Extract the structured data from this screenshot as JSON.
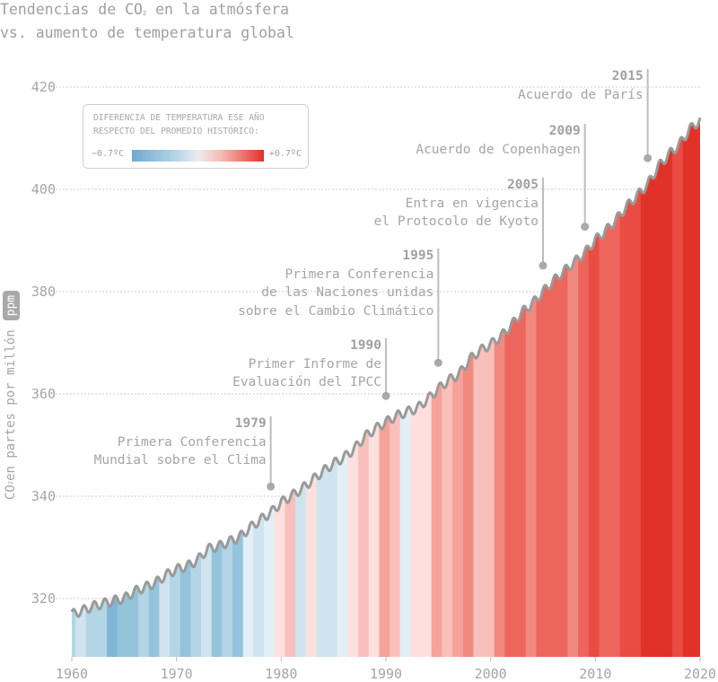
{
  "title": {
    "line1_pre": "Tendencias de CO",
    "line1_sub": "2",
    "line1_post": " en la atmósfera",
    "line2": "vs. aumento de temperatura global"
  },
  "legend": {
    "line1": "DIFERENCIA DE TEMPERATURA ESE AÑO",
    "line2": "RESPECTO DEL PROMEDIO HISTÓRICO:",
    "min_label": "−0.7ºC",
    "max_label": "+0.7ºC"
  },
  "ylabel": {
    "pre": "CO",
    "sub": "2",
    "post": " en partes por millón",
    "unit": "ppm"
  },
  "colors": {
    "curve": "#9a9a9a",
    "cold": "#6fa9cf",
    "neutral": "#ecebef",
    "warm": "#e2302a",
    "grid": "#cccccc",
    "text": "#a0a0a0"
  },
  "annotations": [
    {
      "year": "1979",
      "lines": [
        "Primera Conferencia",
        "Mundial sobre el Clima"
      ]
    },
    {
      "year": "1990",
      "lines": [
        "Primer Informe de",
        "Evaluación del IPCC"
      ]
    },
    {
      "year": "1995",
      "lines": [
        "Primera Conferencia",
        "de las Naciones unidas",
        "sobre el Cambio Climático"
      ]
    },
    {
      "year": "2005",
      "lines": [
        "Entra en vigencia",
        "el Protocolo de Kyoto"
      ]
    },
    {
      "year": "2009",
      "lines": [
        "Acuerdo de Copenhagen"
      ]
    },
    {
      "year": "2015",
      "lines": [
        "Acuerdo de París"
      ]
    }
  ],
  "chart_data": {
    "type": "area",
    "title": "Tendencias de CO2 en la atmósfera vs. aumento de temperatura global",
    "xlabel": "",
    "ylabel": "CO2 en partes por millón (ppm)",
    "xlim": [
      1960,
      2020
    ],
    "ylim": [
      308,
      425
    ],
    "x_ticks": [
      "1960",
      "1970",
      "1980",
      "1990",
      "2000",
      "2010",
      "2020"
    ],
    "y_ticks": [
      "320",
      "340",
      "360",
      "380",
      "400",
      "420"
    ],
    "grid": "horizontal dotted",
    "legend_placement": "top-left",
    "color_scale": {
      "min": -0.7,
      "max": 0.7,
      "unit": "ºC"
    },
    "years": [
      1960,
      1961,
      1962,
      1963,
      1964,
      1965,
      1966,
      1967,
      1968,
      1969,
      1970,
      1971,
      1972,
      1973,
      1974,
      1975,
      1976,
      1977,
      1978,
      1979,
      1980,
      1981,
      1982,
      1983,
      1984,
      1985,
      1986,
      1987,
      1988,
      1989,
      1990,
      1991,
      1992,
      1993,
      1994,
      1995,
      1996,
      1997,
      1998,
      1999,
      2000,
      2001,
      2002,
      2003,
      2004,
      2005,
      2006,
      2007,
      2008,
      2009,
      2010,
      2011,
      2012,
      2013,
      2014,
      2015,
      2016,
      2017,
      2018,
      2019,
      2020
    ],
    "co2_ppm": [
      316.9,
      317.6,
      318.5,
      319.0,
      319.6,
      320.0,
      321.4,
      322.2,
      323.1,
      324.6,
      325.7,
      326.3,
      327.5,
      329.7,
      330.2,
      331.1,
      332.0,
      333.8,
      335.4,
      336.8,
      338.8,
      340.1,
      341.5,
      343.2,
      344.9,
      346.4,
      347.6,
      349.3,
      351.7,
      353.2,
      354.5,
      355.7,
      356.5,
      357.2,
      359.0,
      361.0,
      362.7,
      363.9,
      366.8,
      368.5,
      369.7,
      371.3,
      373.5,
      376.0,
      377.7,
      380.0,
      382.1,
      384.0,
      385.8,
      387.6,
      390.1,
      391.9,
      394.1,
      396.7,
      398.8,
      401.0,
      404.4,
      406.8,
      408.7,
      411.7,
      413.5
    ],
    "temp_anomaly_c": [
      -0.25,
      -0.15,
      -0.25,
      -0.25,
      -0.45,
      -0.35,
      -0.35,
      -0.25,
      -0.35,
      -0.15,
      -0.25,
      -0.35,
      -0.25,
      -0.15,
      -0.35,
      -0.25,
      -0.35,
      -0.05,
      -0.15,
      -0.05,
      0.05,
      0.15,
      -0.15,
      0.05,
      -0.15,
      -0.15,
      -0.05,
      0.05,
      0.15,
      0.05,
      0.25,
      0.15,
      -0.05,
      0.05,
      0.05,
      0.25,
      0.15,
      0.25,
      0.38,
      0.15,
      0.15,
      0.35,
      0.45,
      0.45,
      0.35,
      0.45,
      0.45,
      0.45,
      0.35,
      0.45,
      0.55,
      0.45,
      0.45,
      0.55,
      0.55,
      0.65,
      0.65,
      0.65,
      0.55,
      0.65,
      0.65
    ]
  }
}
